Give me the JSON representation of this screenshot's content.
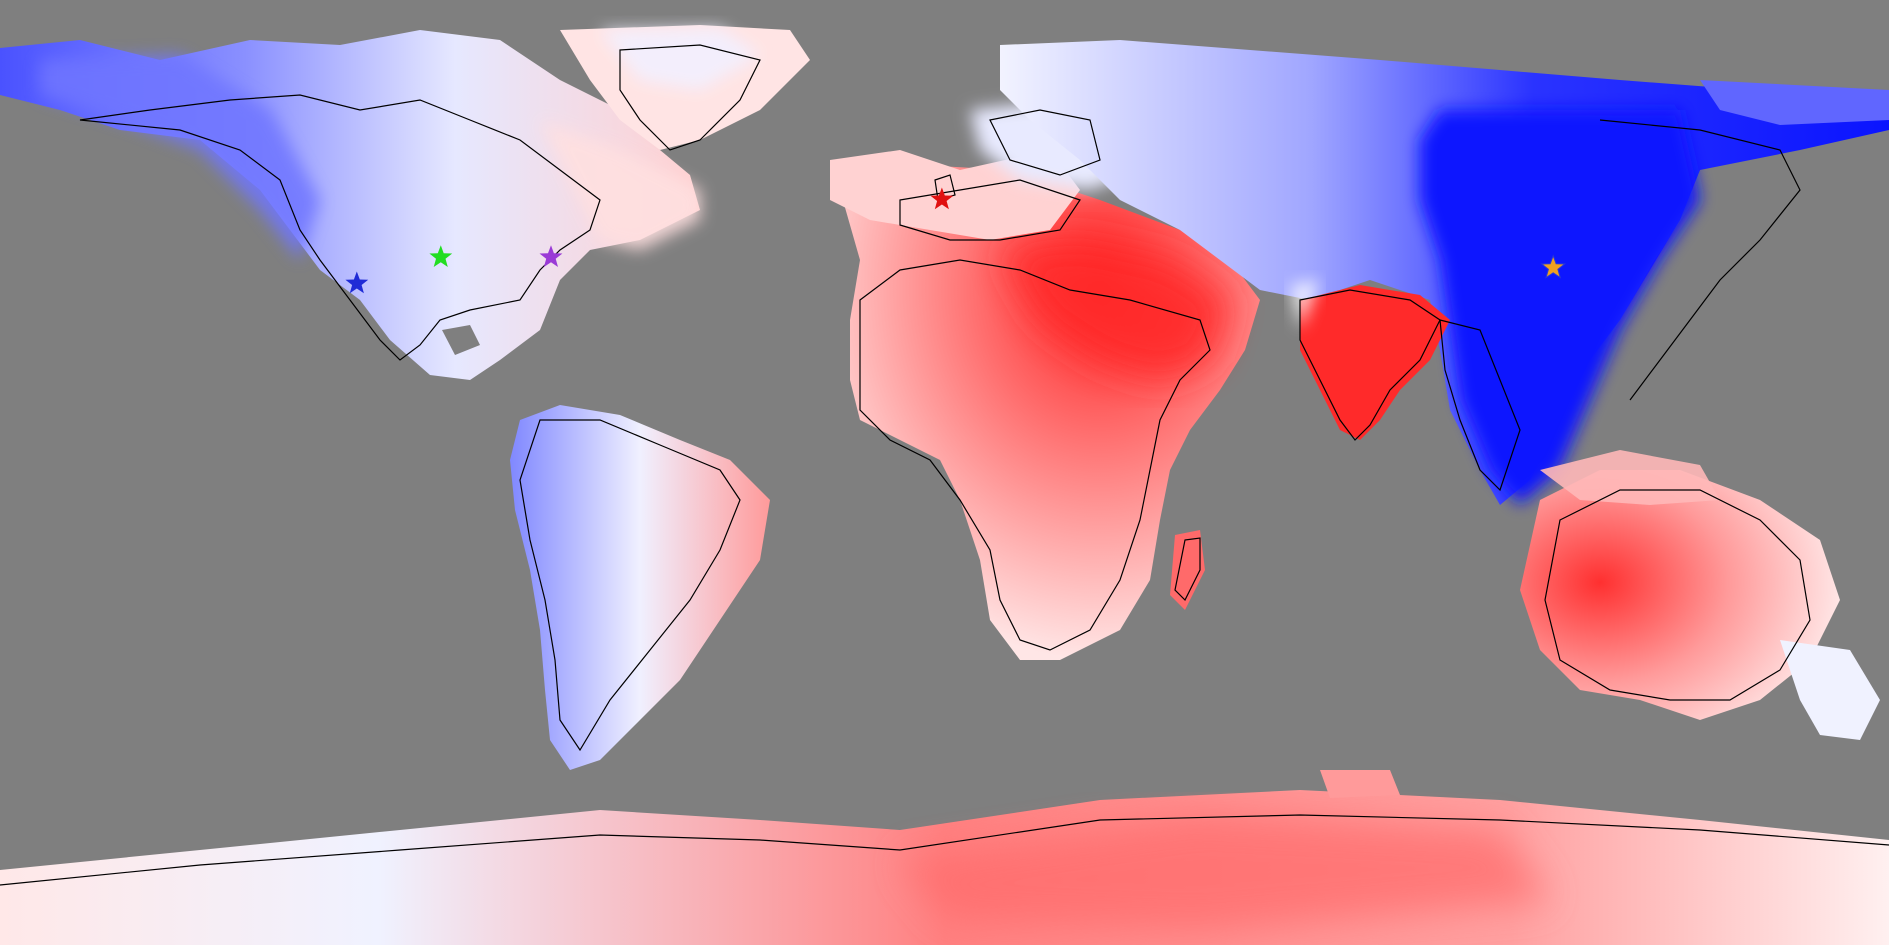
{
  "map": {
    "projection": "equirectangular",
    "ocean_color": "#7f7f7f",
    "coast_color": "#000000",
    "scale": {
      "negative_max": "#0000ff",
      "neutral": "#ffffff",
      "positive_max": "#ff0000"
    },
    "markers": [
      {
        "name": "blue-star",
        "color": "#1f2bd6",
        "lon": -112,
        "lat": 36
      },
      {
        "name": "green-star",
        "color": "#22dd22",
        "lon": -96,
        "lat": 41
      },
      {
        "name": "purple-star",
        "color": "#9a3bd6",
        "lon": -75,
        "lat": 41
      },
      {
        "name": "red-star",
        "color": "#e01010",
        "lon": -0.5,
        "lat": 52
      },
      {
        "name": "orange-star",
        "color": "#f0a020",
        "lon": 116,
        "lat": 39
      }
    ]
  }
}
